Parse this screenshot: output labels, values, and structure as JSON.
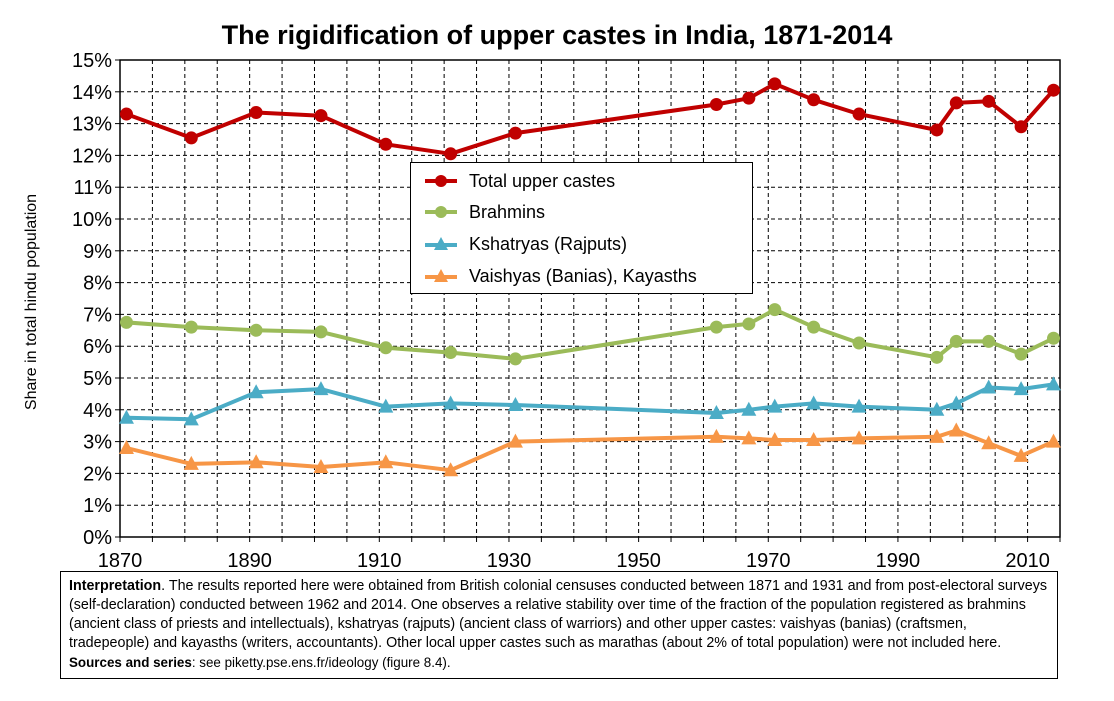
{
  "chart_data": {
    "type": "line",
    "title": "The rigidification of upper castes in India, 1871-2014",
    "ylabel": "Share in total hindu population",
    "xlim": [
      1870,
      2015
    ],
    "ylim": [
      0,
      15
    ],
    "x_ticks": [
      "1870",
      "1890",
      "1910",
      "1930",
      "1950",
      "1970",
      "1990",
      "2010"
    ],
    "y_ticks": [
      "0%",
      "1%",
      "2%",
      "3%",
      "4%",
      "5%",
      "6%",
      "7%",
      "8%",
      "9%",
      "10%",
      "11%",
      "12%",
      "13%",
      "14%",
      "15%"
    ],
    "x_tick_step": 5,
    "grid": true,
    "legend_position": "center",
    "x": [
      1871,
      1881,
      1891,
      1901,
      1911,
      1921,
      1931,
      1962,
      1967,
      1971,
      1977,
      1984,
      1996,
      1999,
      2004,
      2009,
      2014
    ],
    "series": [
      {
        "name": "Total upper castes",
        "color": "#C00000",
        "marker": "circle",
        "values": [
          13.3,
          12.55,
          13.35,
          13.25,
          12.35,
          12.05,
          12.7,
          13.6,
          13.8,
          14.25,
          13.75,
          13.3,
          12.8,
          13.65,
          13.7,
          12.9,
          14.05
        ]
      },
      {
        "name": "Brahmins",
        "color": "#9BBB59",
        "marker": "circle",
        "values": [
          6.75,
          6.6,
          6.5,
          6.45,
          5.95,
          5.8,
          5.6,
          6.6,
          6.7,
          7.15,
          6.6,
          6.1,
          5.65,
          6.15,
          6.15,
          5.75,
          6.25
        ]
      },
      {
        "name": "Kshatryas (Rajputs)",
        "color": "#4BACC6",
        "marker": "triangle",
        "values": [
          3.75,
          3.7,
          4.55,
          4.65,
          4.1,
          4.2,
          4.15,
          3.9,
          4.0,
          4.1,
          4.2,
          4.1,
          4.0,
          4.2,
          4.7,
          4.65,
          4.8
        ]
      },
      {
        "name": "Vaishyas (Banias), Kayasths",
        "color": "#F79646",
        "marker": "triangle",
        "values": [
          2.8,
          2.3,
          2.35,
          2.2,
          2.35,
          2.1,
          3.0,
          3.15,
          3.1,
          3.05,
          3.05,
          3.1,
          3.15,
          3.35,
          2.95,
          2.55,
          3.0
        ]
      }
    ]
  },
  "note": {
    "label": "Interpretation",
    "text": ". The results reported here were obtained from British colonial censuses conducted between 1871 and 1931 and from post-electoral surveys (self-declaration) conducted between 1962 and 2014. One observes a relative stability over time of the fraction of the population registered as brahmins (ancient class of priests and intellectuals), kshatryas (rajputs) (ancient class of warriors) and other upper castes: vaishyas (banias) (craftsmen, tradepeople) and kayasths (writers, accountants). Other local upper castes such as marathas (about 2% of total population) were not included here. ",
    "sources_label": "Sources and series",
    "sources_text": ": see piketty.pse.ens.fr/ideology (figure 8.4)."
  }
}
